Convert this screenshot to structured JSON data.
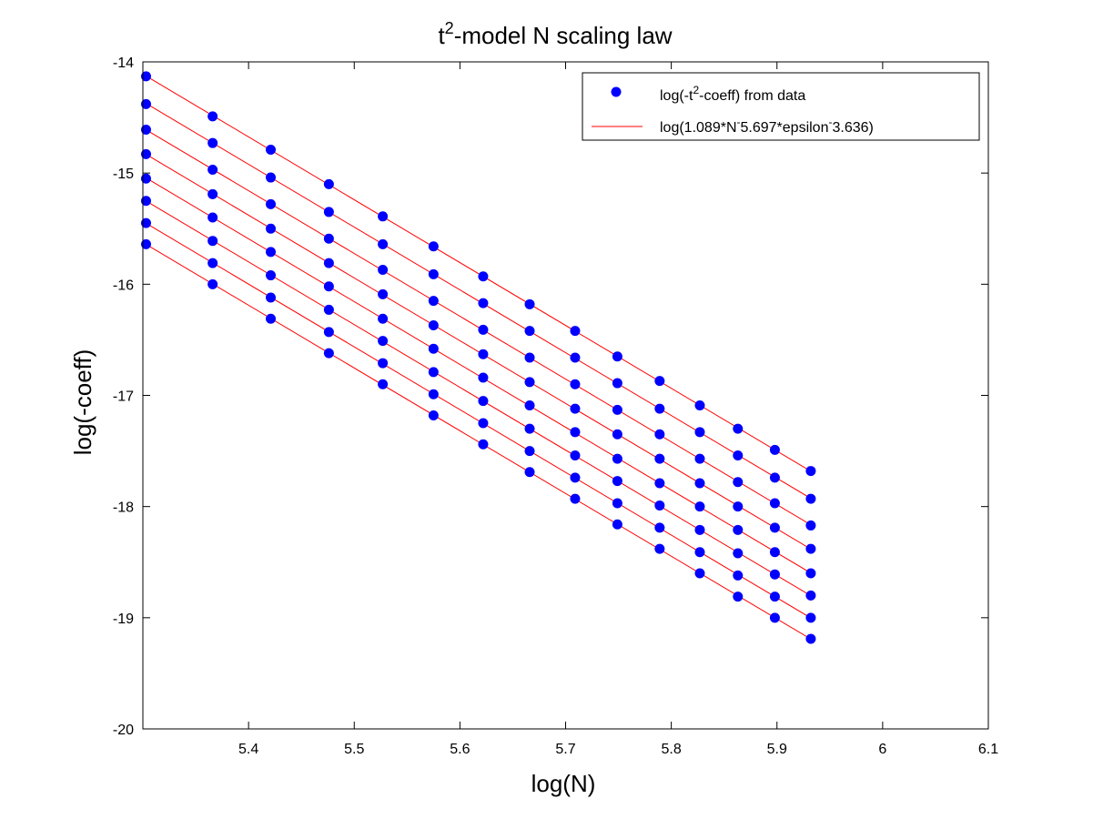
{
  "chart_data": {
    "type": "scatter",
    "title": {
      "base": "t",
      "sup": "2",
      "rest": "-model N scaling law"
    },
    "xlabel": "log(N)",
    "ylabel": "log(-coeff)",
    "xlim": [
      5.3,
      6.1
    ],
    "ylim": [
      -20,
      -14
    ],
    "xticks": [
      5.4,
      5.5,
      5.6,
      5.7,
      5.8,
      5.9,
      6,
      6.1
    ],
    "yticks": [
      -14,
      -15,
      -16,
      -17,
      -18,
      -19,
      -20
    ],
    "xtick_labels": [
      "5.4",
      "5.5",
      "5.6",
      "5.7",
      "5.8",
      "5.9",
      "6",
      "6.1"
    ],
    "ytick_labels": [
      "-14",
      "-15",
      "-16",
      "-17",
      "-18",
      "-19",
      "-20"
    ],
    "grid": false,
    "legend_position": "top-right",
    "legend": [
      {
        "parts": [
          "log(-t",
          "2",
          "-coeff) from data"
        ],
        "marker": "dot",
        "color": "#0000ff"
      },
      {
        "parts": [
          "log(1.089*N",
          "-",
          "5.697*epsilon",
          "-",
          "3.636)"
        ],
        "marker": "line",
        "color": "#ff0000"
      }
    ],
    "x": [
      5.303,
      5.366,
      5.421,
      5.476,
      5.527,
      5.575,
      5.622,
      5.666,
      5.709,
      5.749,
      5.789,
      5.827,
      5.863,
      5.898,
      5.932
    ],
    "series": [
      {
        "values": [
          -14.13,
          -14.49,
          -14.79,
          -15.1,
          -15.39,
          -15.66,
          -15.93,
          -16.18,
          -16.42,
          -16.65,
          -16.87,
          -17.09,
          -17.3,
          -17.49,
          -17.68
        ]
      },
      {
        "values": [
          -14.38,
          -14.73,
          -15.04,
          -15.35,
          -15.64,
          -15.91,
          -16.17,
          -16.42,
          -16.66,
          -16.89,
          -17.12,
          -17.33,
          -17.54,
          -17.74,
          -17.93
        ]
      },
      {
        "values": [
          -14.61,
          -14.97,
          -15.28,
          -15.59,
          -15.87,
          -16.15,
          -16.41,
          -16.66,
          -16.9,
          -17.13,
          -17.35,
          -17.57,
          -17.78,
          -17.97,
          -18.17
        ]
      },
      {
        "values": [
          -14.83,
          -15.19,
          -15.5,
          -15.81,
          -16.09,
          -16.37,
          -16.63,
          -16.88,
          -17.12,
          -17.35,
          -17.57,
          -17.79,
          -18.0,
          -18.19,
          -18.38
        ]
      },
      {
        "values": [
          -15.05,
          -15.4,
          -15.71,
          -16.02,
          -16.31,
          -16.58,
          -16.84,
          -17.09,
          -17.33,
          -17.57,
          -17.79,
          -18.0,
          -18.21,
          -18.41,
          -18.6
        ]
      },
      {
        "values": [
          -15.25,
          -15.61,
          -15.92,
          -16.23,
          -16.51,
          -16.79,
          -17.05,
          -17.3,
          -17.54,
          -17.77,
          -17.99,
          -18.21,
          -18.42,
          -18.61,
          -18.8
        ]
      },
      {
        "values": [
          -15.45,
          -15.81,
          -16.12,
          -16.43,
          -16.71,
          -16.99,
          -17.25,
          -17.5,
          -17.74,
          -17.97,
          -18.19,
          -18.41,
          -18.62,
          -18.81,
          -19.0
        ]
      },
      {
        "values": [
          -15.64,
          -16.0,
          -16.31,
          -16.62,
          -16.9,
          -17.18,
          -17.44,
          -17.69,
          -17.93,
          -18.16,
          -18.38,
          -18.6,
          -18.81,
          -19.0,
          -19.19
        ]
      }
    ],
    "colors": {
      "points": "#0000ff",
      "fit": "#ff0000",
      "axes": "#000000",
      "background": "#ffffff"
    }
  }
}
